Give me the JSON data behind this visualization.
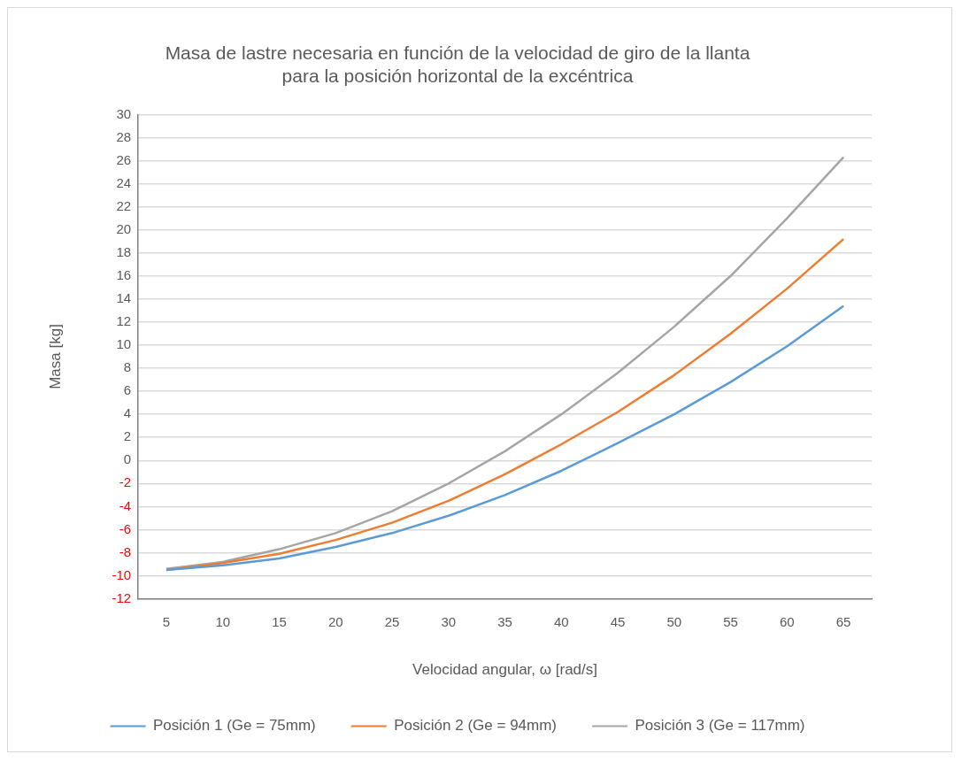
{
  "chart_data": {
    "type": "line",
    "title": "Masa de lastre necesaria en función de la velocidad de giro de la llanta para la posición horizontal de la excéntrica",
    "xlabel": "Velocidad angular, ω [rad/s]",
    "ylabel": "Masa [kg]",
    "categories": [
      "5",
      "10",
      "15",
      "20",
      "25",
      "30",
      "35",
      "40",
      "45",
      "50",
      "55",
      "60",
      "65"
    ],
    "series": [
      {
        "name": "Posición 1 (Ge = 75mm)",
        "color": "#5b9bd5",
        "values": [
          -9.5,
          -9.1,
          -8.5,
          -7.5,
          -6.3,
          -4.8,
          -3.0,
          -0.9,
          1.5,
          4.0,
          6.8,
          9.9,
          13.4
        ]
      },
      {
        "name": "Posición 2 (Ge = 94mm)",
        "color": "#ed7d31",
        "values": [
          -9.5,
          -8.9,
          -8.1,
          -6.9,
          -5.4,
          -3.5,
          -1.2,
          1.4,
          4.2,
          7.4,
          11.0,
          14.9,
          19.2
        ]
      },
      {
        "name": "Posición 3 (Ge = 117mm)",
        "color": "#a5a5a5",
        "values": [
          -9.4,
          -8.8,
          -7.7,
          -6.3,
          -4.4,
          -2.0,
          0.8,
          4.0,
          7.6,
          11.6,
          16.0,
          21.0,
          26.3
        ]
      }
    ],
    "ylim": [
      -12,
      30
    ],
    "yticks": [
      -12,
      -10,
      -8,
      -6,
      -4,
      -2,
      0,
      2,
      4,
      6,
      8,
      10,
      12,
      14,
      16,
      18,
      20,
      22,
      24,
      26,
      28,
      30
    ],
    "grid": "y",
    "legend": "bottom",
    "marker": "none",
    "line_style": "solid"
  }
}
